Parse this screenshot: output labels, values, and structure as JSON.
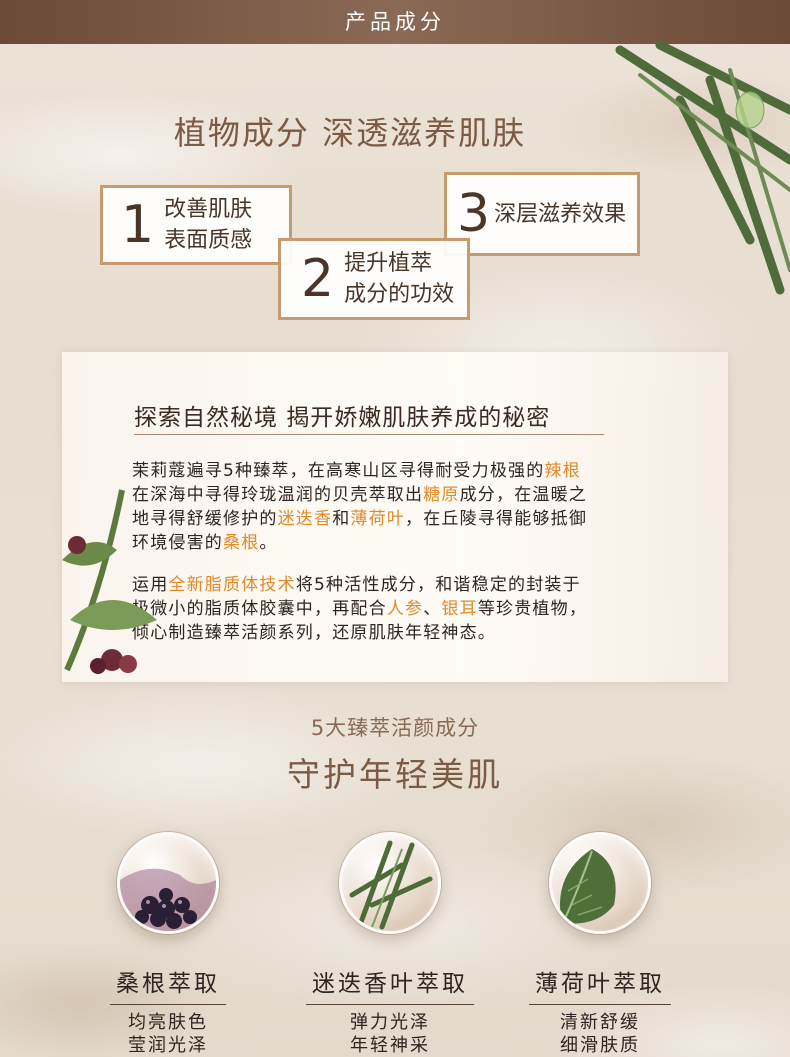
{
  "header": {
    "title": "产品成分"
  },
  "section1": {
    "title": "植物成分  深透滋养肌肤"
  },
  "benefits": [
    {
      "num": "1",
      "line1": "改善肌肤",
      "line2": "表面质感"
    },
    {
      "num": "2",
      "line1": "提升植萃",
      "line2": "成分的功效"
    },
    {
      "num": "3",
      "line1": "深层滋养效果",
      "line2": ""
    }
  ],
  "panel": {
    "title": "探索自然秘境 揭开娇嫩肌肤养成的秘密",
    "p1": [
      "茉莉蔻遍寻5种臻萃，在高寒山区寻得耐受力极强的",
      "辣根",
      "在深海中寻得玲珑温润的贝壳萃取出",
      "糖原",
      "成分，在温暖之",
      "地寻得舒缓修护的",
      "迷迭香",
      "和",
      "薄荷叶",
      "，在丘陵寻得能够抵御",
      "环境侵害的",
      "桑根",
      "。"
    ],
    "p2": [
      "运用",
      "全新脂质体技术",
      "将5种活性成分，和谐稳定的封装于",
      "极微小的脂质体胶囊中，再配合",
      "人参",
      "、",
      "银耳",
      "等珍贵植物，",
      "倾心制造臻萃活颜系列，还原肌肤年轻神态。"
    ]
  },
  "section2": {
    "subtitle": "5大臻萃活颜成分",
    "title": "守护年轻美肌"
  },
  "ingredients": [
    {
      "name": "桑根萃取",
      "desc1": "均亮肤色",
      "desc2": "莹润光泽",
      "icon": "mulberry-icon"
    },
    {
      "name": "迷迭香叶萃取",
      "desc1": "弹力光泽",
      "desc2": "年轻神采",
      "icon": "rosemary-icon"
    },
    {
      "name": "薄荷叶萃取",
      "desc1": "清新舒缓",
      "desc2": "细滑肤质",
      "icon": "mint-leaf-icon"
    }
  ],
  "colors": {
    "accent": "#c79b6e",
    "highlight": "#e08a2c",
    "header": "#6b4a38"
  }
}
